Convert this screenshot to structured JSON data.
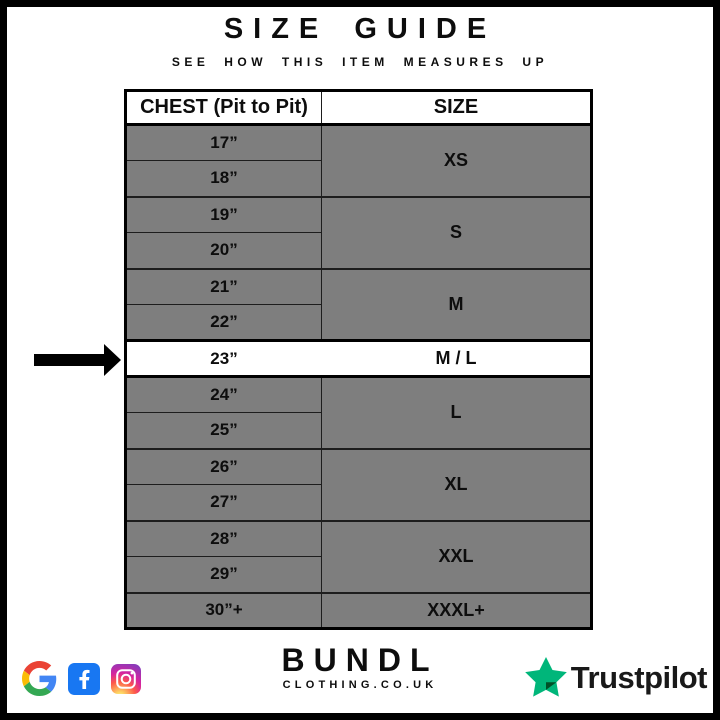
{
  "title": "SIZE GUIDE",
  "subtitle": "SEE HOW THIS ITEM MEASURES UP",
  "table": {
    "headers": [
      "CHEST (Pit to Pit)",
      "SIZE"
    ],
    "groups": [
      {
        "size": "XS",
        "chest": [
          "17”",
          "18”"
        ],
        "highlighted": false
      },
      {
        "size": "S",
        "chest": [
          "19”",
          "20”"
        ],
        "highlighted": false
      },
      {
        "size": "M",
        "chest": [
          "21”",
          "22”"
        ],
        "highlighted": false
      },
      {
        "size": "M / L",
        "chest": [
          "23”"
        ],
        "highlighted": true
      },
      {
        "size": "L",
        "chest": [
          "24”",
          "25”"
        ],
        "highlighted": false
      },
      {
        "size": "XL",
        "chest": [
          "26”",
          "27”"
        ],
        "highlighted": false
      },
      {
        "size": "XXL",
        "chest": [
          "28”",
          "29”"
        ],
        "highlighted": false
      },
      {
        "size": "XXXL+",
        "chest": [
          "30”+"
        ],
        "highlighted": false
      }
    ],
    "highlighted_value": "23”",
    "highlighted_size": "M / L"
  },
  "chart_data": {
    "type": "table",
    "title": "SIZE GUIDE",
    "subtitle": "SEE HOW THIS ITEM MEASURES UP",
    "columns": [
      "CHEST (Pit to Pit)",
      "SIZE"
    ],
    "rows": [
      [
        "17”",
        "XS"
      ],
      [
        "18”",
        "XS"
      ],
      [
        "19”",
        "S"
      ],
      [
        "20”",
        "S"
      ],
      [
        "21”",
        "M"
      ],
      [
        "22”",
        "M"
      ],
      [
        "23”",
        "M / L"
      ],
      [
        "24”",
        "L"
      ],
      [
        "25”",
        "L"
      ],
      [
        "26”",
        "XL"
      ],
      [
        "27”",
        "XL"
      ],
      [
        "28”",
        "XXL"
      ],
      [
        "29”",
        "XXL"
      ],
      [
        "30”+",
        "XXXL+"
      ]
    ],
    "highlighted_row": [
      "23”",
      "M / L"
    ]
  },
  "footer": {
    "brand_name": "BUNDL",
    "brand_sub": "CLOTHING.CO.UK",
    "trustpilot_label": "Trustpilot",
    "icons": [
      "google-icon",
      "facebook-icon",
      "instagram-icon",
      "trustpilot-star-icon"
    ]
  },
  "colors": {
    "row_gray": "#7e7e7e",
    "highlight_row": "#ffffff",
    "border_black": "#000000",
    "facebook_blue": "#1877F2",
    "trustpilot_green": "#00B67A",
    "trustpilot_dark_green": "#005128",
    "google_blue": "#4285F4",
    "google_red": "#EA4335",
    "google_yellow": "#FBBC05",
    "google_green": "#34A853"
  }
}
